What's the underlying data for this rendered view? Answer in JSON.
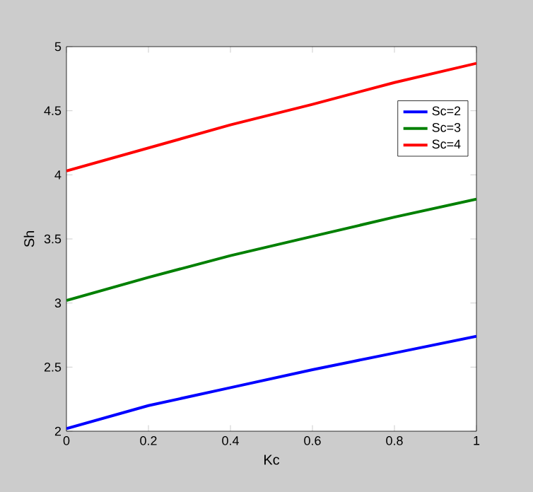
{
  "chart_data": {
    "type": "line",
    "xlabel": "Kc",
    "ylabel": "Sh",
    "x": [
      0,
      0.2,
      0.4,
      0.6,
      0.8,
      1
    ],
    "series": [
      {
        "name": "Sc=2",
        "color": "#0000ff",
        "values": [
          2.02,
          2.2,
          2.34,
          2.48,
          2.61,
          2.74
        ]
      },
      {
        "name": "Sc=3",
        "color": "#008000",
        "values": [
          3.02,
          3.2,
          3.37,
          3.52,
          3.67,
          3.81
        ]
      },
      {
        "name": "Sc=4",
        "color": "#ff0000",
        "values": [
          4.03,
          4.21,
          4.39,
          4.55,
          4.72,
          4.87
        ]
      }
    ],
    "xlim": [
      0,
      1
    ],
    "ylim": [
      2,
      5
    ],
    "xticks": [
      0,
      0.2,
      0.4,
      0.6,
      0.8,
      1
    ],
    "yticks": [
      2,
      2.5,
      3,
      3.5,
      4,
      4.5,
      5
    ],
    "legend": "top right",
    "grid": false,
    "marker": "none",
    "line_style": "solid"
  }
}
